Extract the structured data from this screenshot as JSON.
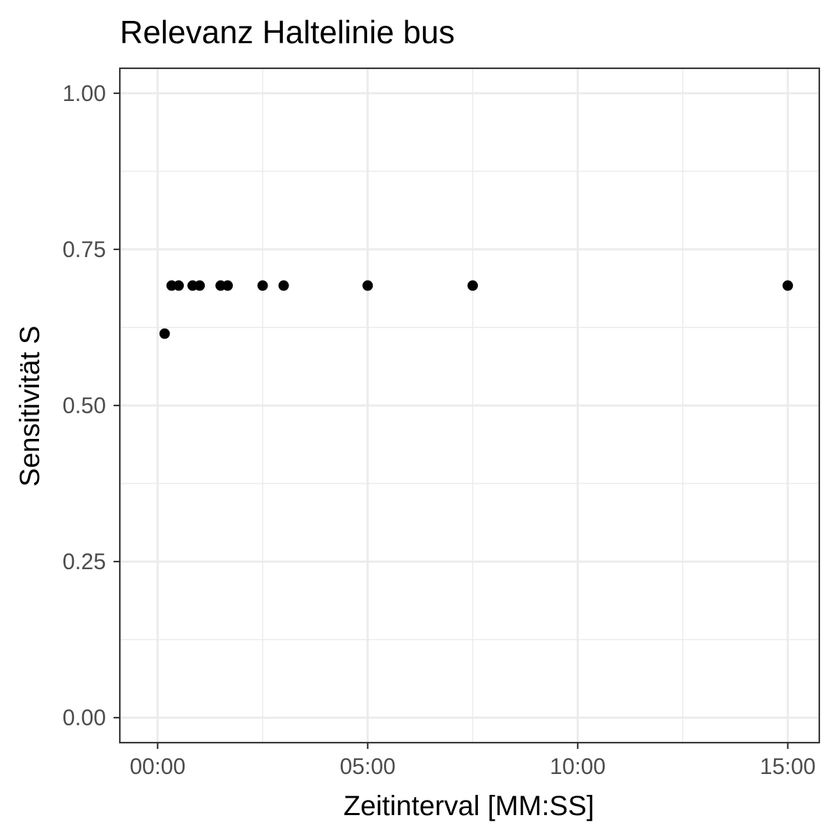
{
  "chart_data": {
    "type": "scatter",
    "title": "Relevanz Haltelinie bus",
    "xlabel": "Zeitinterval [MM:SS]",
    "ylabel": "Sensitivität S",
    "x_unit": "MM:SS",
    "xlim": [
      "-00:54",
      "15:45"
    ],
    "ylim": [
      -0.04,
      1.04
    ],
    "x_ticks": [
      "00:00",
      "05:00",
      "10:00",
      "15:00"
    ],
    "x_minor_ticks": [
      "02:30",
      "07:30",
      "12:30"
    ],
    "y_ticks": [
      "0.00",
      "0.25",
      "0.50",
      "0.75",
      "1.00"
    ],
    "y_minor_ticks": [
      "0.125",
      "0.375",
      "0.625",
      "0.875"
    ],
    "grid": true,
    "legend": "none",
    "point_color": "#000000",
    "points": [
      {
        "x": "00:10",
        "y": 0.615
      },
      {
        "x": "00:20",
        "y": 0.692
      },
      {
        "x": "00:30",
        "y": 0.692
      },
      {
        "x": "00:50",
        "y": 0.692
      },
      {
        "x": "01:00",
        "y": 0.692
      },
      {
        "x": "01:30",
        "y": 0.692
      },
      {
        "x": "01:40",
        "y": 0.692
      },
      {
        "x": "02:30",
        "y": 0.692
      },
      {
        "x": "03:00",
        "y": 0.692
      },
      {
        "x": "05:00",
        "y": 0.692
      },
      {
        "x": "07:30",
        "y": 0.692
      },
      {
        "x": "15:00",
        "y": 0.692
      }
    ]
  }
}
